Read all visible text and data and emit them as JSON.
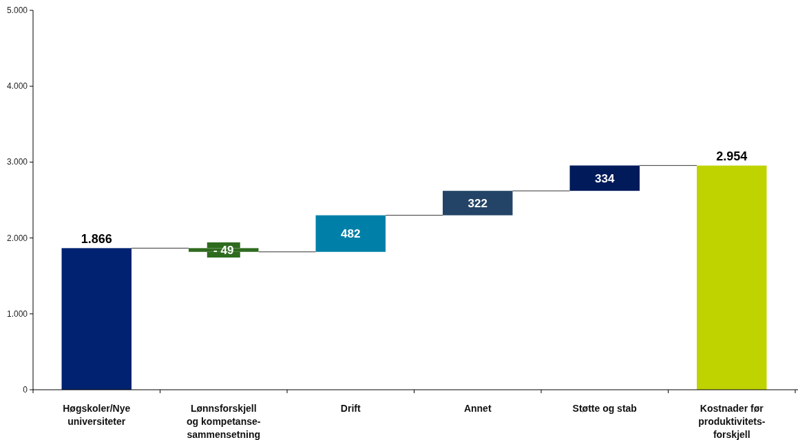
{
  "chart_data": {
    "type": "bar",
    "categories": [
      "Høgskoler/Nye universiteter",
      "Lønnsforskjell og kompetanse-sammensetning",
      "Drift",
      "Annet",
      "Støtte og stab",
      "Kostnader før produktivitets-forskjell"
    ],
    "values": [
      1866,
      -49,
      482,
      322,
      334,
      2954
    ],
    "base": [
      0,
      1866,
      1817,
      2299,
      2621,
      0
    ],
    "colors": [
      "#002270",
      "#2f6b1f",
      "#0080a8",
      "#234466",
      "#001a5a",
      "#bfd300"
    ],
    "value_labels": [
      "1.866",
      "- 49",
      "482",
      "322",
      "334",
      "2.954"
    ],
    "ylim": [
      0,
      5000
    ],
    "yticks": [
      {
        "value": 0,
        "label": "0"
      },
      {
        "value": 1000,
        "label": "1.000"
      },
      {
        "value": 2000,
        "label": "2.000"
      },
      {
        "value": 3000,
        "label": "3.000"
      },
      {
        "value": 4000,
        "label": "4.000"
      },
      {
        "value": 5000,
        "label": "5.000"
      }
    ],
    "grid": false
  }
}
